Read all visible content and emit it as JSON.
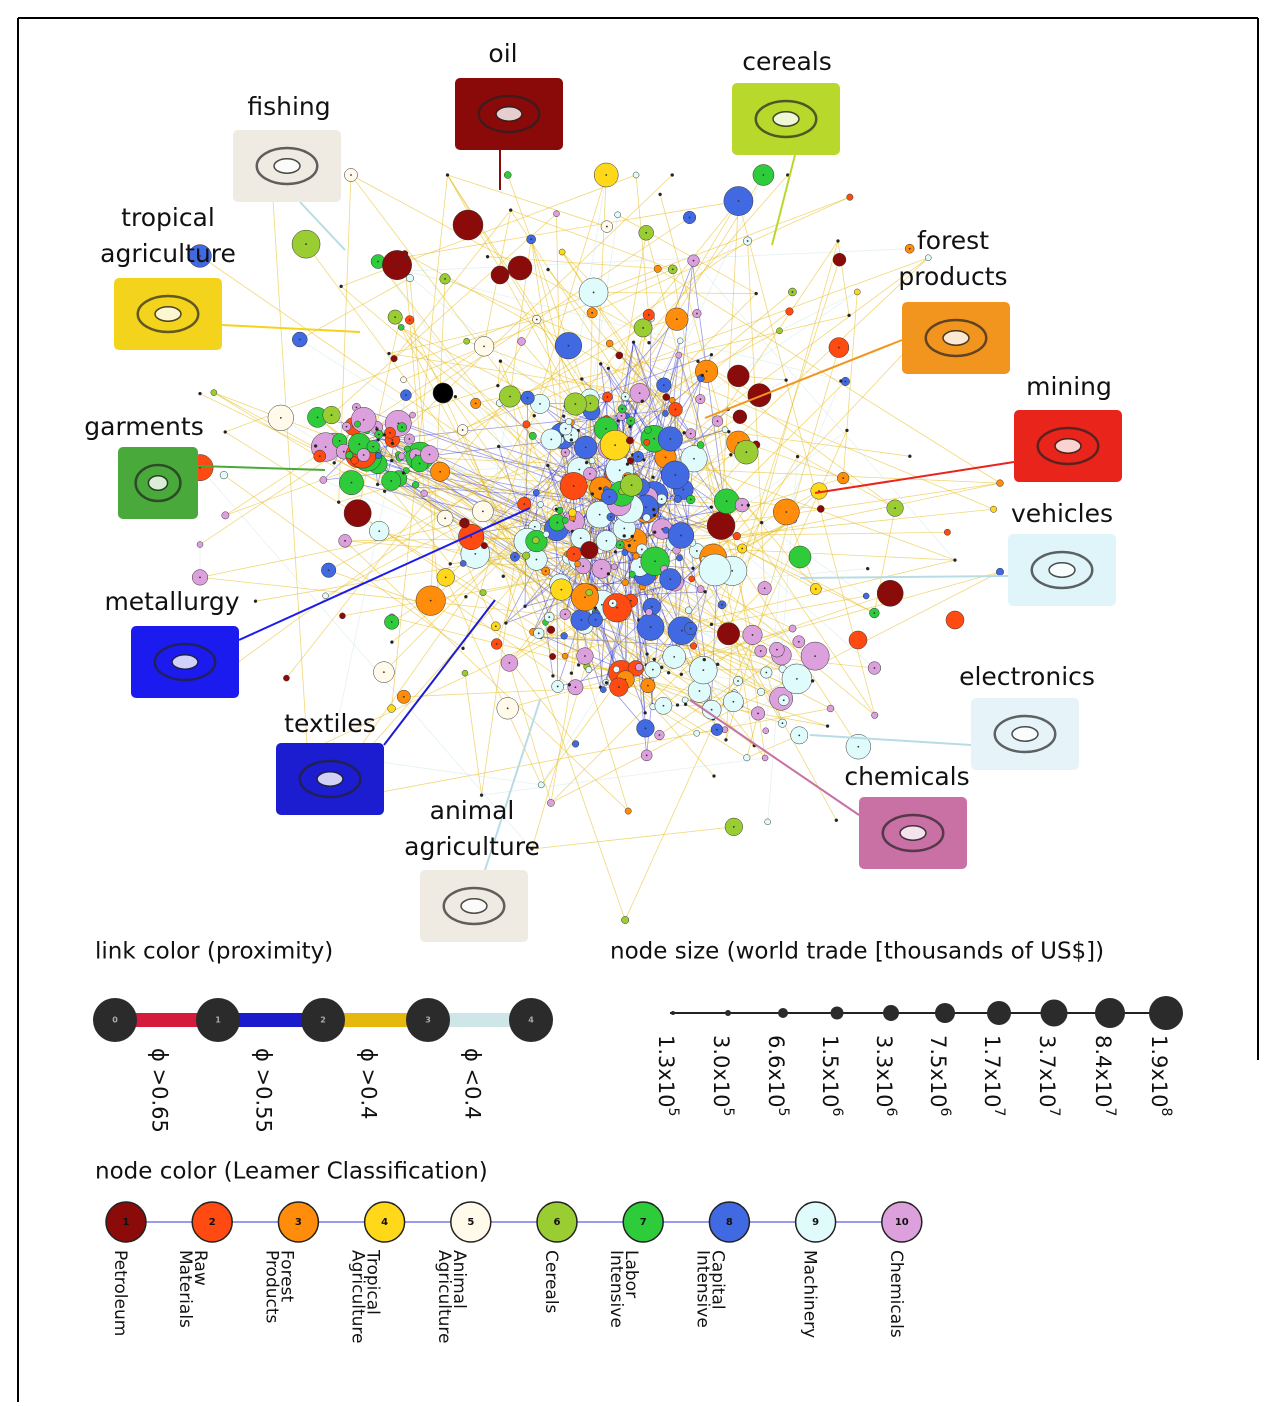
{
  "callouts": [
    {
      "lines": [
        "oil"
      ],
      "color": "#8a0a0a"
    },
    {
      "lines": [
        "cereals"
      ],
      "color": "#b8d82c"
    },
    {
      "lines": [
        "fishing"
      ],
      "color": "#efebe2"
    },
    {
      "lines": [
        "tropical",
        "agriculture"
      ],
      "color": "#f3d31c"
    },
    {
      "lines": [
        "forest",
        "products"
      ],
      "color": "#f1951f"
    },
    {
      "lines": [
        "mining"
      ],
      "color": "#e8241b"
    },
    {
      "lines": [
        "garments"
      ],
      "color": "#4aa93b"
    },
    {
      "lines": [
        "vehicles"
      ],
      "color": "#dff5fa"
    },
    {
      "lines": [
        "metallurgy"
      ],
      "color": "#1b1bf0"
    },
    {
      "lines": [
        "electronics"
      ],
      "color": "#e6f4fa"
    },
    {
      "lines": [
        "textiles"
      ],
      "color": "#1c1cd0"
    },
    {
      "lines": [
        "chemicals"
      ],
      "color": "#c970a4"
    },
    {
      "lines": [
        "animal",
        "agriculture"
      ],
      "color": "#efebe2"
    }
  ],
  "link_legend": {
    "title": "link color (proximity)",
    "nodes": [
      "0",
      "1",
      "2",
      "3",
      "4"
    ],
    "links": [
      {
        "label": "ϕ >0.65",
        "color": "#d41b3c"
      },
      {
        "label": "ϕ >0.55",
        "color": "#1b1bcc"
      },
      {
        "label": "ϕ >0.4",
        "color": "#e6b80d"
      },
      {
        "label": "ϕ <0.4",
        "color": "#cfe6e8"
      }
    ]
  },
  "size_legend": {
    "title": "node size (world trade [thousands of US$])",
    "items": [
      {
        "base": "1.3x10",
        "exponent": "5"
      },
      {
        "base": "3.0x10",
        "exponent": "5"
      },
      {
        "base": "6.6x10",
        "exponent": "5"
      },
      {
        "base": "1.5x10",
        "exponent": "6"
      },
      {
        "base": "3.3x10",
        "exponent": "6"
      },
      {
        "base": "7.5x10",
        "exponent": "6"
      },
      {
        "base": "1.7x10",
        "exponent": "7"
      },
      {
        "base": "3.7x10",
        "exponent": "7"
      },
      {
        "base": "8.4x10",
        "exponent": "7"
      },
      {
        "base": "1.9x10",
        "exponent": "8"
      }
    ]
  },
  "color_legend": {
    "title": "node color (Leamer Classification)",
    "items": [
      {
        "number": "1",
        "lines": [
          "Petroleum"
        ],
        "color": "#8b0a0a"
      },
      {
        "number": "2",
        "lines": [
          "Raw",
          "Materials"
        ],
        "color": "#ff4a12"
      },
      {
        "number": "3",
        "lines": [
          "Forest",
          "Products"
        ],
        "color": "#ff8c0a"
      },
      {
        "number": "4",
        "lines": [
          "Tropical",
          "Agriculture"
        ],
        "color": "#ffd81a"
      },
      {
        "number": "5",
        "lines": [
          "Animal",
          "Agriculture"
        ],
        "color": "#fffaea"
      },
      {
        "number": "6",
        "lines": [
          "Cereals"
        ],
        "color": "#9acd32"
      },
      {
        "number": "7",
        "lines": [
          "Labor",
          "Intensive"
        ],
        "color": "#2ecc3a"
      },
      {
        "number": "8",
        "lines": [
          "Capital",
          "Intensive"
        ],
        "color": "#4169e1"
      },
      {
        "number": "9",
        "lines": [
          "Machinery"
        ],
        "color": "#e0fbfb"
      },
      {
        "number": "10",
        "lines": [
          "Chemicals"
        ],
        "color": "#dca0dc"
      }
    ]
  }
}
